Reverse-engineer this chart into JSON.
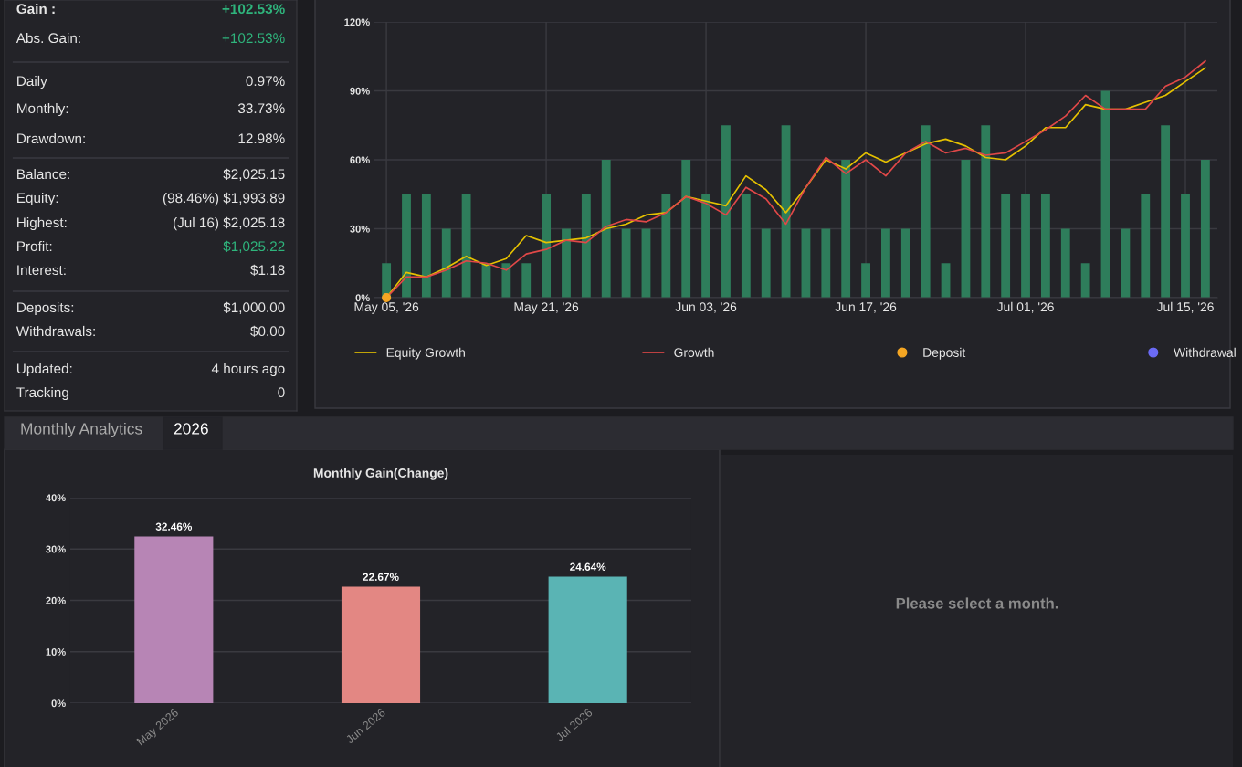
{
  "chart_data": [
    {
      "type": "other",
      "annotations": [
        "Gain :",
        "+102.53%",
        "Abs. Gain:",
        "+102.53%",
        "Daily",
        "0.97%",
        "Monthly:",
        "33.73%",
        "Drawdown:",
        "12.98%",
        "Balance:",
        "$2,025.15",
        "Equity:",
        "(98.46%) $1,993.89",
        "Highest:",
        "(Jul 16) $2,025.18",
        "Profit:",
        "$1,025.22",
        "Interest:",
        "$1.18",
        "Deposits:",
        "$1,000.00",
        "Withdrawals:",
        "$0.00",
        "Updated:",
        "4 hours ago",
        "Tracking",
        "0"
      ],
      "colors": [
        "#e6e6e6",
        "#2fb47c",
        "#e6e6e6",
        "#2fb47c",
        "#e6e6e6",
        "#e6e6e6",
        "#e6e6e6",
        "#e6e6e6",
        "#e6e6e6",
        "#e6e6e6",
        "#e6e6e6",
        "#e6e6e6",
        "#e6e6e6",
        "#e6e6e6",
        "#e6e6e6",
        "#e6e6e6",
        "#e6e6e6",
        "#2fb47c",
        "#e6e6e6",
        "#e6e6e6",
        "#e6e6e6",
        "#e6e6e6",
        "#e6e6e6",
        "#e6e6e6",
        "#e6e6e6",
        "#e6e6e6",
        "#e6e6e6",
        "#e6e6e6"
      ]
    },
    {
      "type": "line",
      "categories": [
        "May 05, '26",
        null,
        null,
        null,
        null,
        null,
        null,
        null,
        "May 21, '26",
        null,
        null,
        null,
        null,
        null,
        null,
        null,
        "Jun 03, '26",
        null,
        null,
        null,
        null,
        null,
        null,
        null,
        "Jun 17, '26",
        null,
        null,
        null,
        null,
        null,
        null,
        null,
        "Jul 01, '26",
        null,
        null,
        null,
        null,
        null,
        null,
        null,
        "Jul 15, '26",
        null
      ],
      "series": [
        {
          "type": "bar",
          "color": "#2e7d5b",
          "values": [
            15,
            45,
            45,
            30,
            45,
            15,
            15,
            15,
            45,
            30,
            45,
            60,
            30,
            30,
            45,
            60,
            45,
            75,
            45,
            30,
            75,
            30,
            30,
            60,
            15,
            30,
            30,
            75,
            15,
            60,
            75,
            45,
            45,
            45,
            30,
            15,
            90,
            30,
            45,
            75,
            45,
            60
          ]
        },
        {
          "type": "line",
          "name": "Equity Growth",
          "color": "#e5c100",
          "marker": "none",
          "values": [
            0,
            11,
            9,
            13,
            18,
            14,
            17,
            27,
            24,
            25,
            26,
            30,
            32,
            36,
            37,
            44,
            42,
            40,
            53,
            47,
            37,
            48,
            60,
            56,
            63,
            59,
            63,
            67,
            69,
            66,
            61,
            60,
            66,
            74,
            74,
            84,
            82,
            82,
            85,
            88,
            94,
            100
          ]
        },
        {
          "type": "line",
          "name": "Growth",
          "color": "#e04848",
          "marker": "none",
          "values": [
            0,
            9,
            9,
            12,
            16,
            15,
            12,
            19,
            21,
            25,
            24,
            31,
            34,
            33,
            37,
            44,
            41,
            36,
            48,
            43,
            32,
            48,
            61,
            54,
            60,
            53,
            63,
            68,
            63,
            65,
            62,
            63,
            68,
            73,
            79,
            88,
            82,
            82,
            82,
            92,
            96,
            103
          ]
        },
        {
          "type": "scatter",
          "name": "Deposit",
          "color": "#f5a623",
          "marker": "circle",
          "values": [
            0,
            null,
            null,
            null,
            null,
            null,
            null,
            null,
            null,
            null,
            null,
            null,
            null,
            null,
            null,
            null,
            null,
            null,
            null,
            null,
            null,
            null,
            null,
            null,
            null,
            null,
            null,
            null,
            null,
            null,
            null,
            null,
            null,
            null,
            null,
            null,
            null,
            null,
            null,
            null,
            null,
            null
          ]
        },
        {
          "type": "scatter",
          "name": "Withdrawal",
          "color": "#6b6bf5",
          "marker": "circle",
          "values": [
            null,
            null,
            null,
            null,
            null,
            null,
            null,
            null,
            null,
            null,
            null,
            null,
            null,
            null,
            null,
            null,
            null,
            null,
            null,
            null,
            null,
            null,
            null,
            null,
            null,
            null,
            null,
            null,
            null,
            null,
            null,
            null,
            null,
            null,
            null,
            null,
            null,
            null,
            null,
            null,
            null,
            null
          ]
        }
      ],
      "ylim": [
        0,
        120
      ],
      "yticks": [
        {
          "value": 0,
          "label": "0%"
        },
        {
          "value": 30,
          "label": "30%"
        },
        {
          "value": 60,
          "label": "60%"
        },
        {
          "value": 90,
          "label": "90%"
        },
        {
          "value": 120,
          "label": "120%"
        }
      ],
      "grid": true,
      "legend": "bottom"
    },
    {
      "type": "bar",
      "title": "Monthly Gain(Change)",
      "annotations": [
        "Monthly Analytics",
        "2026"
      ],
      "categories": [
        "May 2026",
        "Jun 2026",
        "Jul 2026"
      ],
      "values": [
        32.46,
        22.67,
        24.64
      ],
      "colors": [
        "#b785b5",
        "#e38783",
        "#5ab4b4"
      ],
      "value_labels": [
        "32.46%",
        "22.67%",
        "24.64%"
      ],
      "ylim": [
        0,
        40
      ],
      "yticks": [
        {
          "value": 0,
          "label": "0%"
        },
        {
          "value": 10,
          "label": "10%"
        },
        {
          "value": 20,
          "label": "20%"
        },
        {
          "value": 30,
          "label": "30%"
        },
        {
          "value": 40,
          "label": "40%"
        }
      ],
      "grid": "y"
    },
    {
      "type": "other",
      "annotations": [
        "Please select a month."
      ]
    }
  ]
}
